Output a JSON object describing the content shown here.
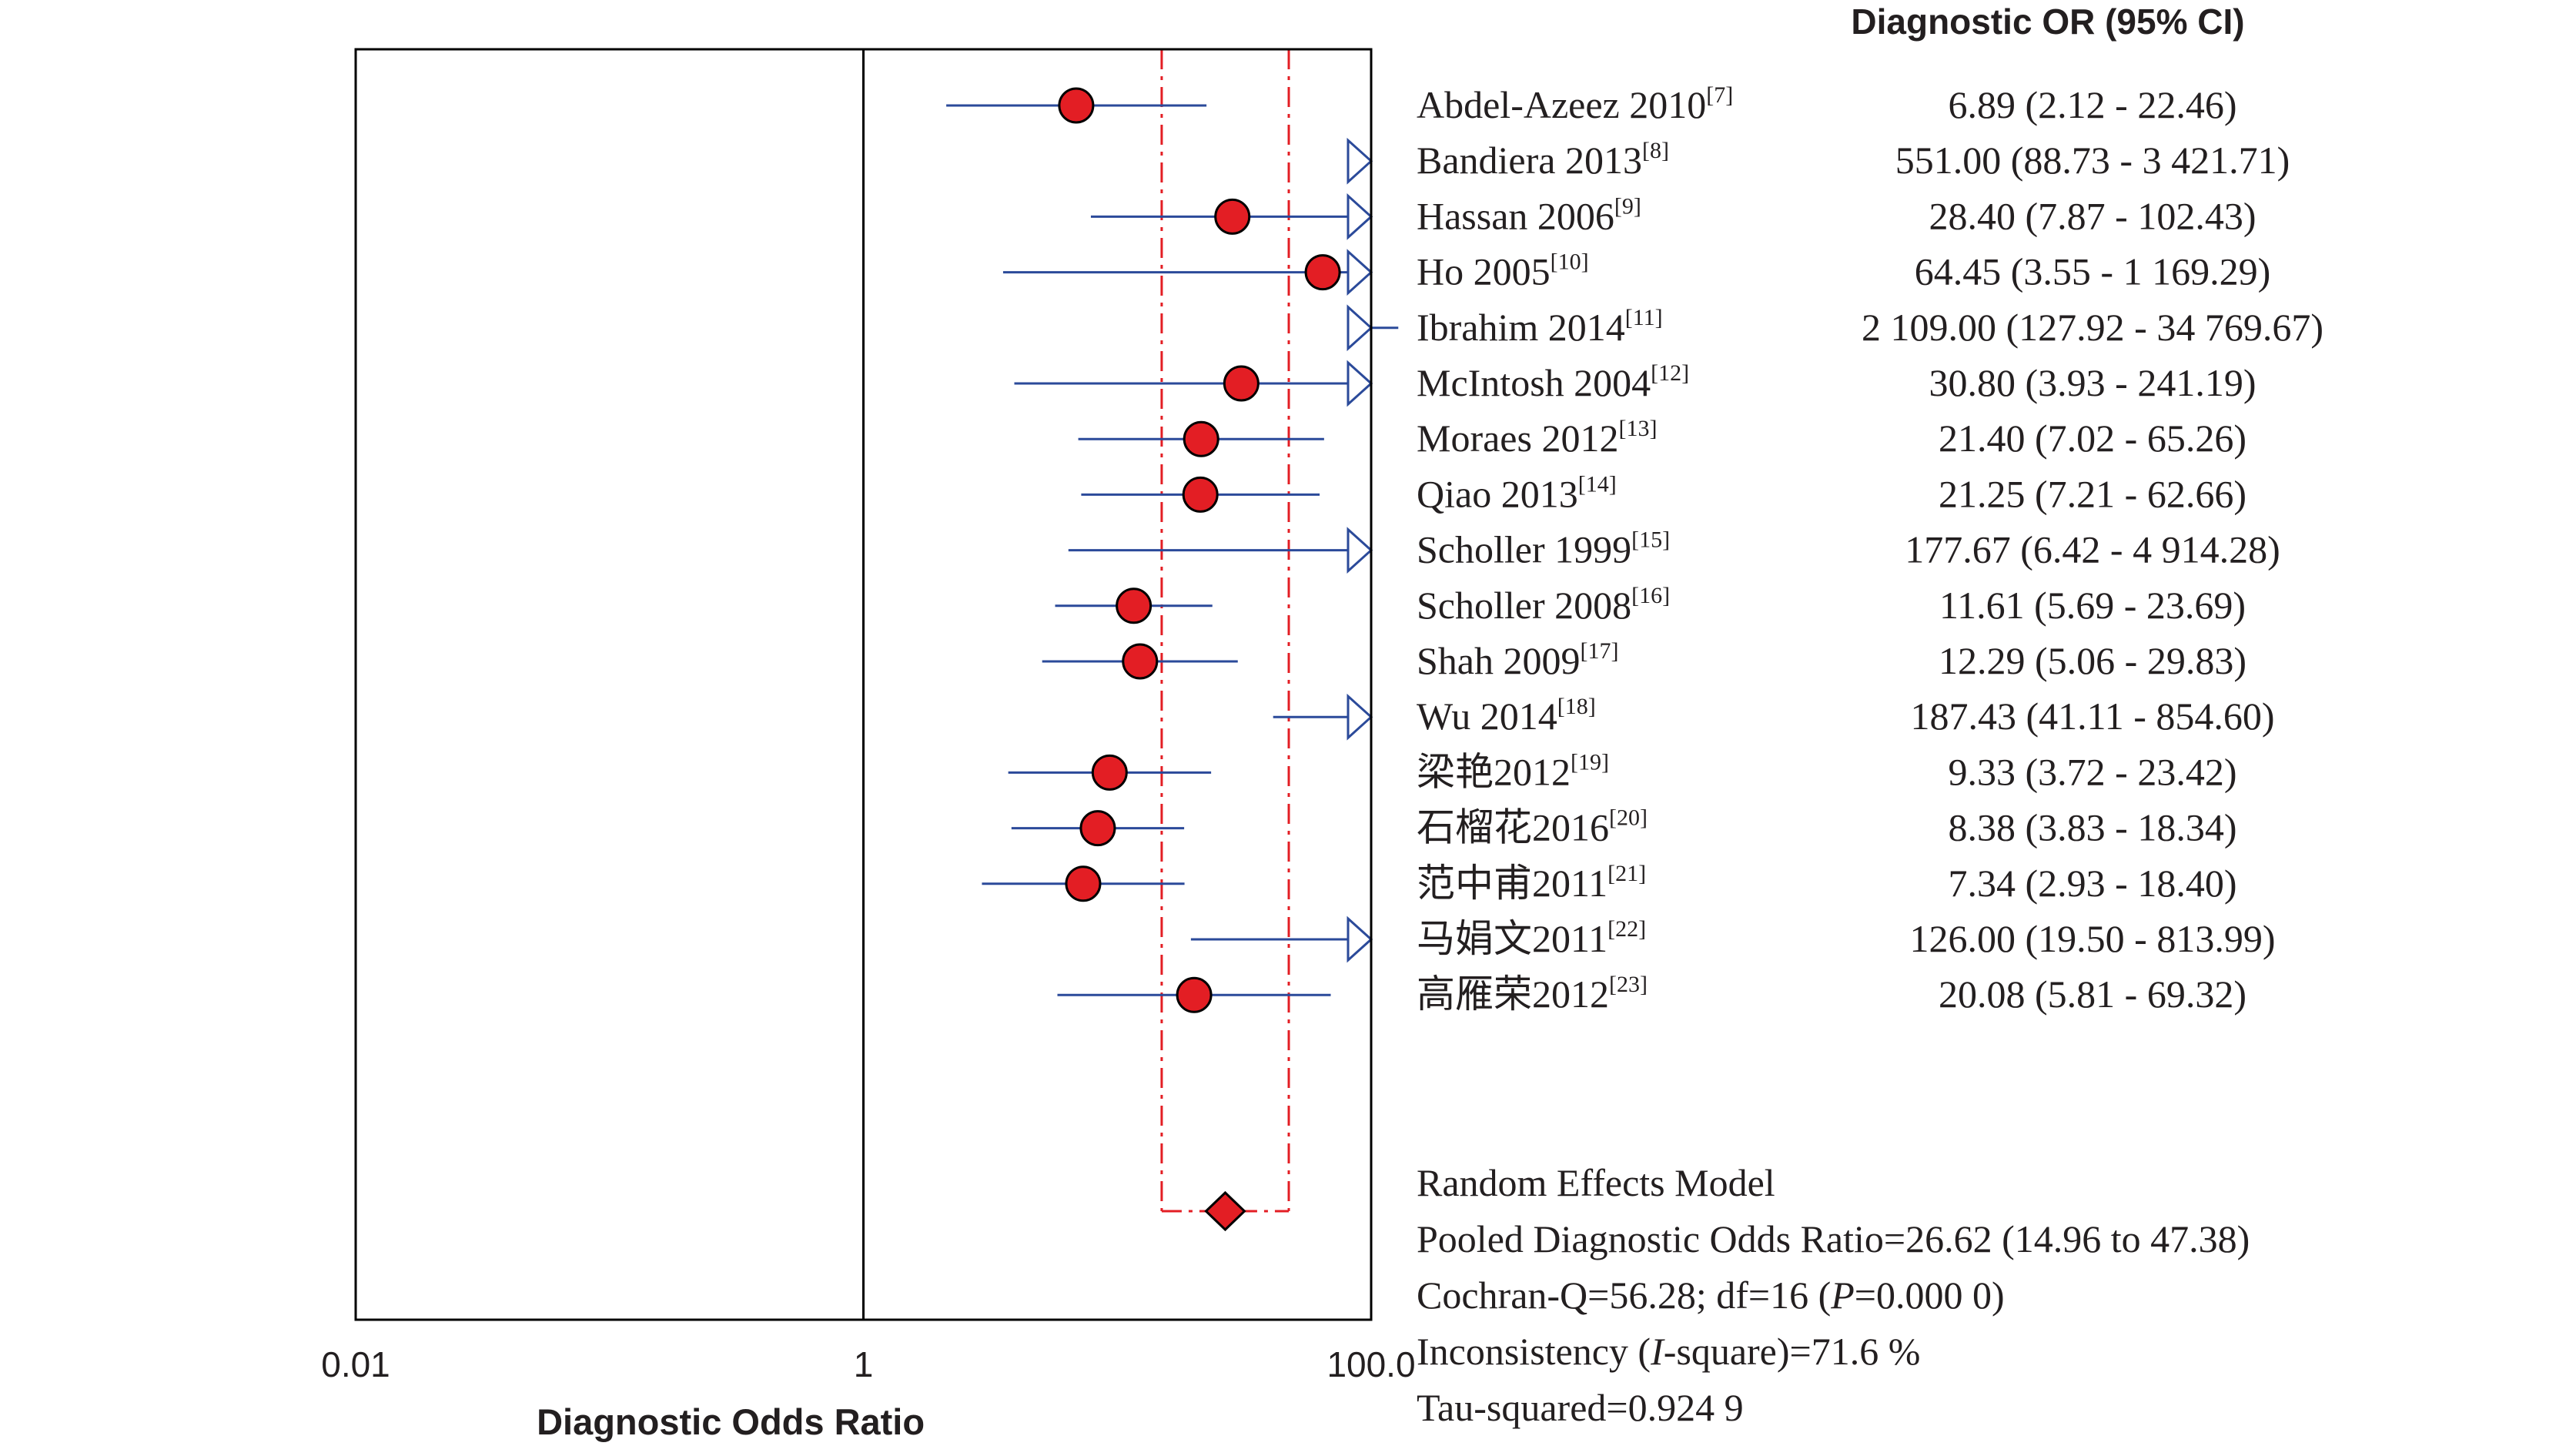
{
  "chart_data": {
    "type": "forest",
    "xlabel": "Diagnostic Odds Ratio",
    "x_scale": "log",
    "xlim": [
      0.01,
      100.0
    ],
    "x_ticks": [
      "0.01",
      "1",
      "100.0"
    ],
    "x_tick_values": [
      0.01,
      1,
      100
    ],
    "column_header": "Diagnostic OR (95% CI)",
    "colors": {
      "point": "#e31e24",
      "ci_line": "#2b4a9a",
      "pooled_ci": "#e31e24",
      "frame": "#000000"
    },
    "studies": [
      {
        "name": "Abdel-Azeez 2010",
        "ref": "[7]",
        "or": 6.89,
        "lower": 2.12,
        "upper": 22.46,
        "ci_text": "6.89 (2.12 - 22.46)"
      },
      {
        "name": "Bandiera 2013",
        "ref": "[8]",
        "or": 551.0,
        "lower": 88.73,
        "upper": 3421.71,
        "ci_text": "551.00 (88.73 - 3 421.71)"
      },
      {
        "name": "Hassan 2006",
        "ref": "[9]",
        "or": 28.4,
        "lower": 7.87,
        "upper": 102.43,
        "ci_text": "28.40 (7.87 - 102.43)"
      },
      {
        "name": "Ho 2005",
        "ref": "[10]",
        "or": 64.45,
        "lower": 3.55,
        "upper": 1169.29,
        "ci_text": "64.45 (3.55 - 1 169.29)"
      },
      {
        "name": "Ibrahim 2014",
        "ref": "[11]",
        "or": 2109.0,
        "lower": 127.92,
        "upper": 34769.67,
        "ci_text": "2 109.00 (127.92 - 34 769.67)"
      },
      {
        "name": "McIntosh 2004",
        "ref": "[12]",
        "or": 30.8,
        "lower": 3.93,
        "upper": 241.19,
        "ci_text": "30.80 (3.93 - 241.19)"
      },
      {
        "name": "Moraes 2012",
        "ref": "[13]",
        "or": 21.4,
        "lower": 7.02,
        "upper": 65.26,
        "ci_text": "21.40 (7.02 - 65.26)"
      },
      {
        "name": "Qiao 2013",
        "ref": "[14]",
        "or": 21.25,
        "lower": 7.21,
        "upper": 62.66,
        "ci_text": "21.25 (7.21 - 62.66)"
      },
      {
        "name": "Scholler 1999",
        "ref": "[15]",
        "or": 177.67,
        "lower": 6.42,
        "upper": 4914.28,
        "ci_text": "177.67 (6.42 - 4 914.28)"
      },
      {
        "name": "Scholler 2008",
        "ref": "[16]",
        "or": 11.61,
        "lower": 5.69,
        "upper": 23.69,
        "ci_text": "11.61 (5.69 - 23.69)"
      },
      {
        "name": "Shah 2009",
        "ref": "[17]",
        "or": 12.29,
        "lower": 5.06,
        "upper": 29.83,
        "ci_text": "12.29 (5.06 - 29.83)"
      },
      {
        "name": "Wu 2014",
        "ref": "[18]",
        "or": 187.43,
        "lower": 41.11,
        "upper": 854.6,
        "ci_text": "187.43 (41.11 - 854.60)"
      },
      {
        "name": "梁艳2012",
        "ref": "[19]",
        "or": 9.33,
        "lower": 3.72,
        "upper": 23.42,
        "ci_text": "9.33 (3.72 - 23.42)"
      },
      {
        "name": "石榴花2016",
        "ref": "[20]",
        "or": 8.38,
        "lower": 3.83,
        "upper": 18.34,
        "ci_text": "8.38 (3.83 - 18.34)"
      },
      {
        "name": "范中甫2011",
        "ref": "[21]",
        "or": 7.34,
        "lower": 2.93,
        "upper": 18.4,
        "ci_text": "7.34 (2.93 - 18.40)"
      },
      {
        "name": "马娟文2011",
        "ref": "[22]",
        "or": 126.0,
        "lower": 19.5,
        "upper": 813.99,
        "ci_text": "126.00 (19.50 - 813.99)"
      },
      {
        "name": "高雁荣2012",
        "ref": "[23]",
        "or": 20.08,
        "lower": 5.81,
        "upper": 69.32,
        "ci_text": "20.08 (5.81 - 69.32)"
      }
    ],
    "pooled": {
      "or": 26.62,
      "lower": 14.96,
      "upper": 47.38
    },
    "summary": {
      "model": "Random Effects Model",
      "pooled": "Pooled Diagnostic Odds Ratio=26.62 (14.96 to 47.38)",
      "cochran_pre": "Cochran-Q=56.28; df=16 (",
      "cochran_p": "P",
      "cochran_post": "=0.000 0)",
      "incons_pre": "Inconsistency (",
      "incons_i": "I",
      "incons_post": "-square)=71.6 %",
      "tau": "Tau-squared=0.924 9"
    }
  }
}
